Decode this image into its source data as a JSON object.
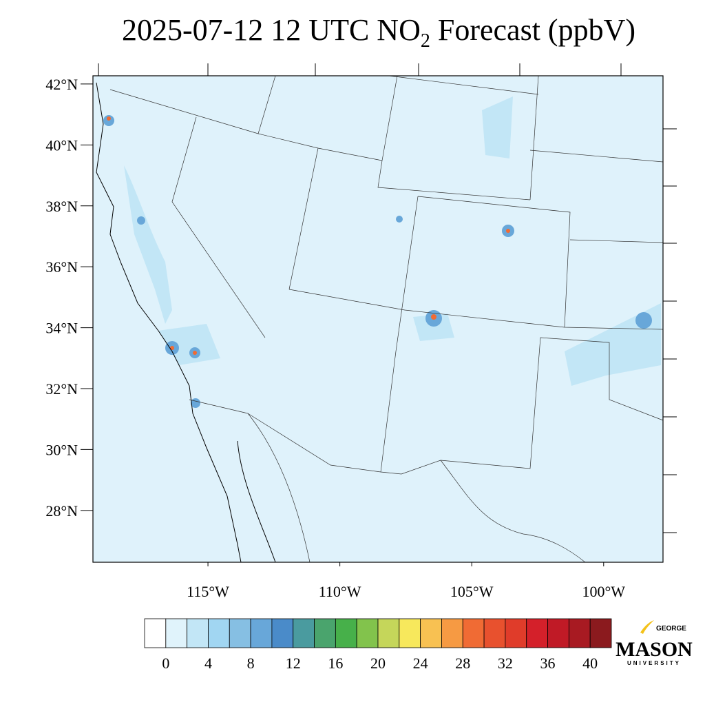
{
  "title_parts": [
    "2025-07-12 12 UTC NO",
    "2",
    " Forecast (ppbV)"
  ],
  "map": {
    "xlim": [
      -119.36,
      -97.75
    ],
    "ylim": [
      26.3,
      42.27
    ],
    "yticks": [
      {
        "value": 28,
        "label": "28°N"
      },
      {
        "value": 30,
        "label": "30°N"
      },
      {
        "value": 32,
        "label": "32°N"
      },
      {
        "value": 34,
        "label": "34°N"
      },
      {
        "value": 36,
        "label": "36°N"
      },
      {
        "value": 38,
        "label": "38°N"
      },
      {
        "value": 40,
        "label": "40°N"
      },
      {
        "value": 42,
        "label": "42°N"
      }
    ],
    "xticks": [
      {
        "value": -115,
        "label": "115°W"
      },
      {
        "value": -110,
        "label": "110°W"
      },
      {
        "value": -105,
        "label": "105°W"
      },
      {
        "value": -100,
        "label": "100°W"
      }
    ]
  },
  "colorbar": {
    "lim": [
      -2,
      42
    ],
    "colors": [
      "#ffffff",
      "#e0f3fb",
      "#c2e6f6",
      "#a1d6f2",
      "#86bfe3",
      "#68a7d9",
      "#4a8bc9",
      "#4a9b9f",
      "#4aa46d",
      "#47b04a",
      "#82c34c",
      "#c5d65a",
      "#f7e85c",
      "#f8c152",
      "#f69a43",
      "#f06b34",
      "#e8512e",
      "#e03c2a",
      "#d4202a",
      "#c01a26",
      "#a81a22",
      "#8b1a1e"
    ],
    "ticks": [
      0,
      4,
      8,
      12,
      16,
      20,
      24,
      28,
      32,
      36,
      40
    ]
  },
  "logo": {
    "top": "GEORGE",
    "main": "MASON",
    "bottom": "UNIVERSITY"
  }
}
